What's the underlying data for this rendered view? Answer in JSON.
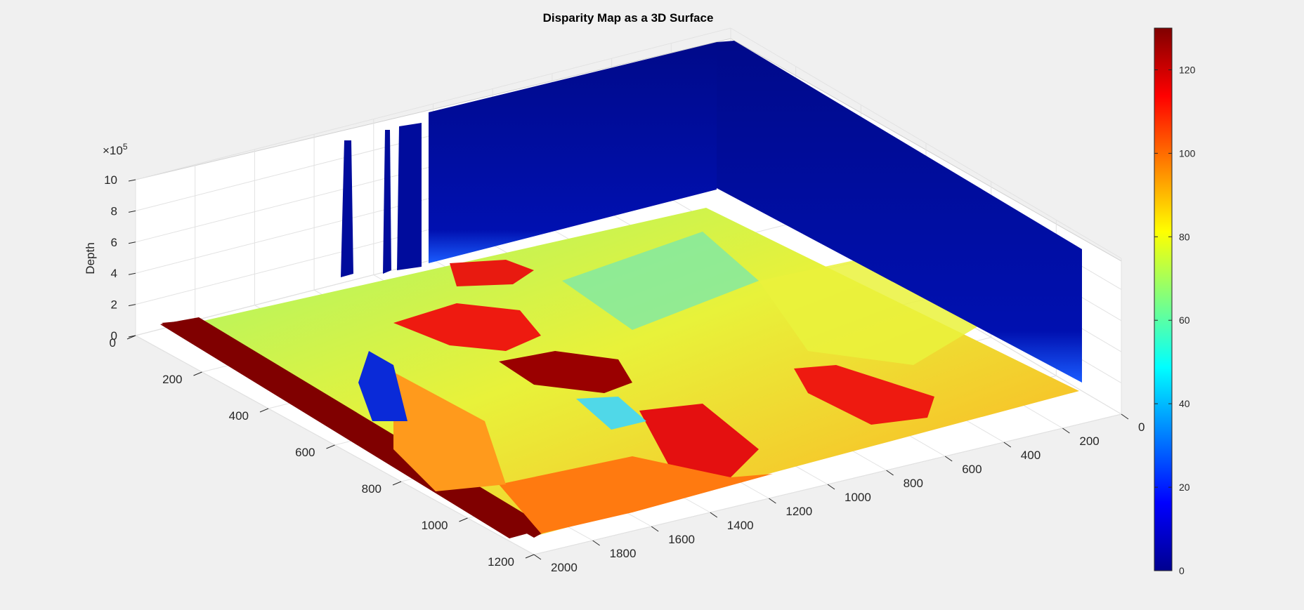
{
  "chart_data": {
    "type": "surface3d",
    "title": "Disparity Map as a 3D Surface",
    "zlabel": "Depth",
    "z_exponent_label": "×10",
    "z_exponent_power": "5",
    "x_ticks": [
      "0",
      "200",
      "400",
      "600",
      "800",
      "1000",
      "1200",
      "1400",
      "1600",
      "1800",
      "2000"
    ],
    "y_ticks": [
      "0",
      "200",
      "400",
      "600",
      "800",
      "1000",
      "1200"
    ],
    "z_ticks": [
      "0",
      "2",
      "4",
      "6",
      "8",
      "10"
    ],
    "xlim": [
      0,
      2000
    ],
    "ylim": [
      0,
      1200
    ],
    "zlim": [
      0,
      10
    ],
    "grid": true,
    "colormap": "jet",
    "colorbar": {
      "ticks": [
        "0",
        "20",
        "40",
        "60",
        "80",
        "100",
        "120"
      ],
      "range": [
        0,
        130
      ],
      "placement": "right"
    }
  }
}
